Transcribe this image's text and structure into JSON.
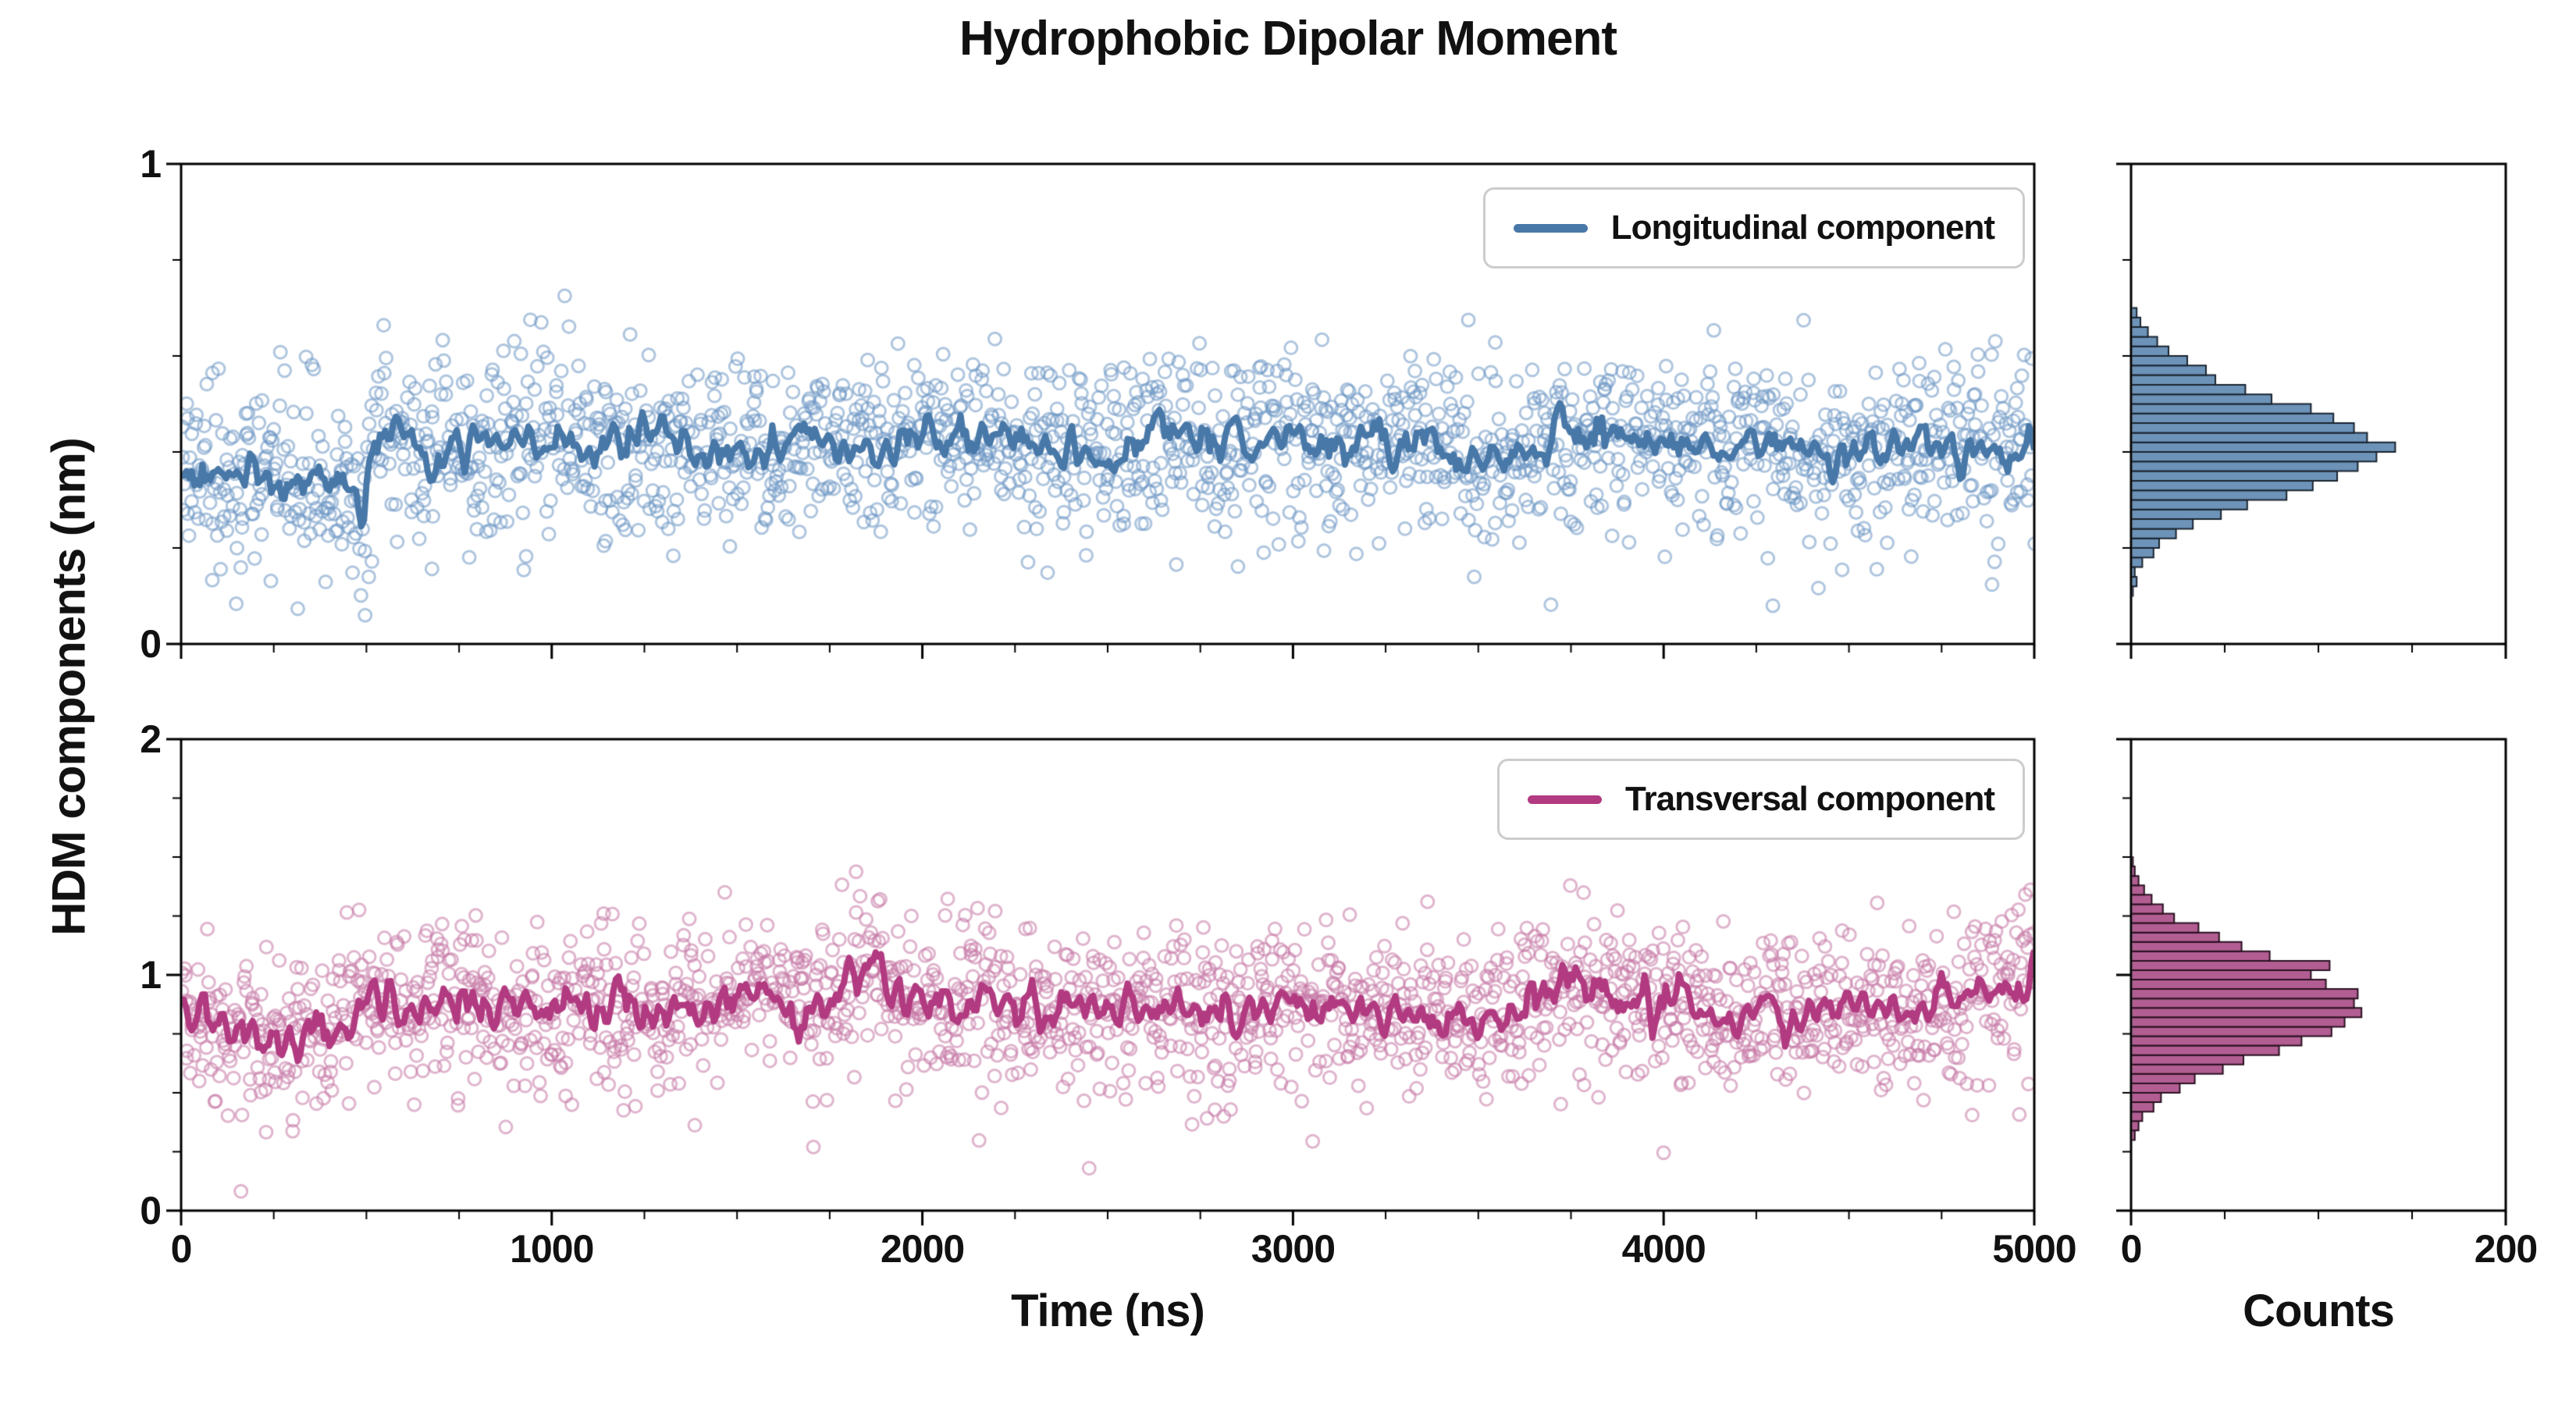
{
  "chart_data": {
    "type": "scatter+line+histogram",
    "title": "Hydrophobic Dipolar Moment",
    "ylabel": "HDM components (nm)",
    "x": {
      "label": "Time (ns)",
      "lim": [
        0,
        5000
      ],
      "ticks": [
        0,
        1000,
        2000,
        3000,
        4000,
        5000
      ],
      "minor_step": 250
    },
    "counts_axis": {
      "label": "Counts",
      "lim": [
        0,
        200
      ],
      "ticks": [
        0,
        200
      ],
      "minor_step": 50
    },
    "panels": [
      {
        "id": "longitudinal",
        "legend": "Longitudinal component",
        "color_line": "#4878a8",
        "color_scatter": "rgba(109,152,197,0.55)",
        "color_hist": "#6d93b8",
        "hist_edge": "#1a2430",
        "ylim": [
          0,
          1
        ],
        "yticks": [
          0,
          1
        ],
        "yticks_minor": [
          0.2,
          0.4,
          0.6,
          0.8
        ],
        "mean": 0.405,
        "scatter_sigma": 0.095,
        "line_noise": 0.022,
        "n_points": 1800,
        "seed": 20240613,
        "outliers": [],
        "baseline": [
          [
            0,
            0.36
          ],
          [
            200,
            0.34
          ],
          [
            350,
            0.345
          ],
          [
            460,
            0.33
          ],
          [
            490,
            0.22
          ],
          [
            520,
            0.44
          ],
          [
            700,
            0.41
          ],
          [
            900,
            0.43
          ],
          [
            1100,
            0.4
          ],
          [
            1300,
            0.42
          ],
          [
            1500,
            0.39
          ],
          [
            1700,
            0.42
          ],
          [
            1900,
            0.41
          ],
          [
            2100,
            0.44
          ],
          [
            2300,
            0.41
          ],
          [
            2500,
            0.4
          ],
          [
            2700,
            0.45
          ],
          [
            2900,
            0.42
          ],
          [
            3100,
            0.41
          ],
          [
            3300,
            0.43
          ],
          [
            3500,
            0.38
          ],
          [
            3700,
            0.42
          ],
          [
            3900,
            0.43
          ],
          [
            4100,
            0.41
          ],
          [
            4300,
            0.42
          ],
          [
            4500,
            0.39
          ],
          [
            4700,
            0.43
          ],
          [
            4900,
            0.4
          ],
          [
            5000,
            0.42
          ]
        ],
        "hist": {
          "bin_start": 0.1,
          "bin_width": 0.02,
          "counts": [
            1,
            3,
            2,
            6,
            12,
            15,
            24,
            33,
            48,
            62,
            83,
            97,
            110,
            121,
            131,
            141,
            126,
            119,
            108,
            96,
            75,
            61,
            45,
            40,
            30,
            20,
            14,
            9,
            5,
            3
          ]
        }
      },
      {
        "id": "transversal",
        "legend": "Transversal component",
        "color_line": "#b13a80",
        "color_scatter": "rgba(198,120,165,0.55)",
        "color_hist": "#b25e93",
        "hist_edge": "#2a1020",
        "ylim": [
          0,
          2
        ],
        "yticks": [
          0,
          1,
          2
        ],
        "yticks_minor": [
          0.25,
          0.5,
          0.75,
          1.25,
          1.5,
          1.75
        ],
        "mean": 0.86,
        "scatter_sigma": 0.175,
        "line_noise": 0.045,
        "n_points": 1800,
        "seed": 8675309,
        "outliers": [
          [
            2450,
            0.18
          ]
        ],
        "baseline": [
          [
            0,
            0.88
          ],
          [
            100,
            0.74
          ],
          [
            250,
            0.72
          ],
          [
            400,
            0.76
          ],
          [
            500,
            0.9
          ],
          [
            650,
            0.85
          ],
          [
            800,
            0.92
          ],
          [
            950,
            0.83
          ],
          [
            1100,
            0.88
          ],
          [
            1250,
            0.8
          ],
          [
            1400,
            0.85
          ],
          [
            1550,
            0.95
          ],
          [
            1700,
            0.85
          ],
          [
            1850,
            1.02
          ],
          [
            1950,
            0.88
          ],
          [
            2100,
            0.85
          ],
          [
            2250,
            0.9
          ],
          [
            2400,
            0.83
          ],
          [
            2550,
            0.88
          ],
          [
            2700,
            0.85
          ],
          [
            2850,
            0.82
          ],
          [
            3000,
            0.9
          ],
          [
            3150,
            0.84
          ],
          [
            3300,
            0.88
          ],
          [
            3450,
            0.8
          ],
          [
            3600,
            0.86
          ],
          [
            3750,
            0.95
          ],
          [
            3900,
            0.85
          ],
          [
            4050,
            0.88
          ],
          [
            4200,
            0.82
          ],
          [
            4350,
            0.86
          ],
          [
            4500,
            0.9
          ],
          [
            4650,
            0.84
          ],
          [
            4800,
            0.88
          ],
          [
            4950,
            0.95
          ],
          [
            5000,
            1.02
          ]
        ],
        "hist": {
          "bin_start": 0.3,
          "bin_width": 0.04,
          "counts": [
            2,
            4,
            6,
            12,
            16,
            26,
            34,
            49,
            60,
            79,
            91,
            107,
            114,
            123,
            119,
            121,
            104,
            96,
            106,
            74,
            59,
            47,
            36,
            23,
            17,
            11,
            7,
            4,
            2,
            1
          ]
        }
      }
    ]
  }
}
